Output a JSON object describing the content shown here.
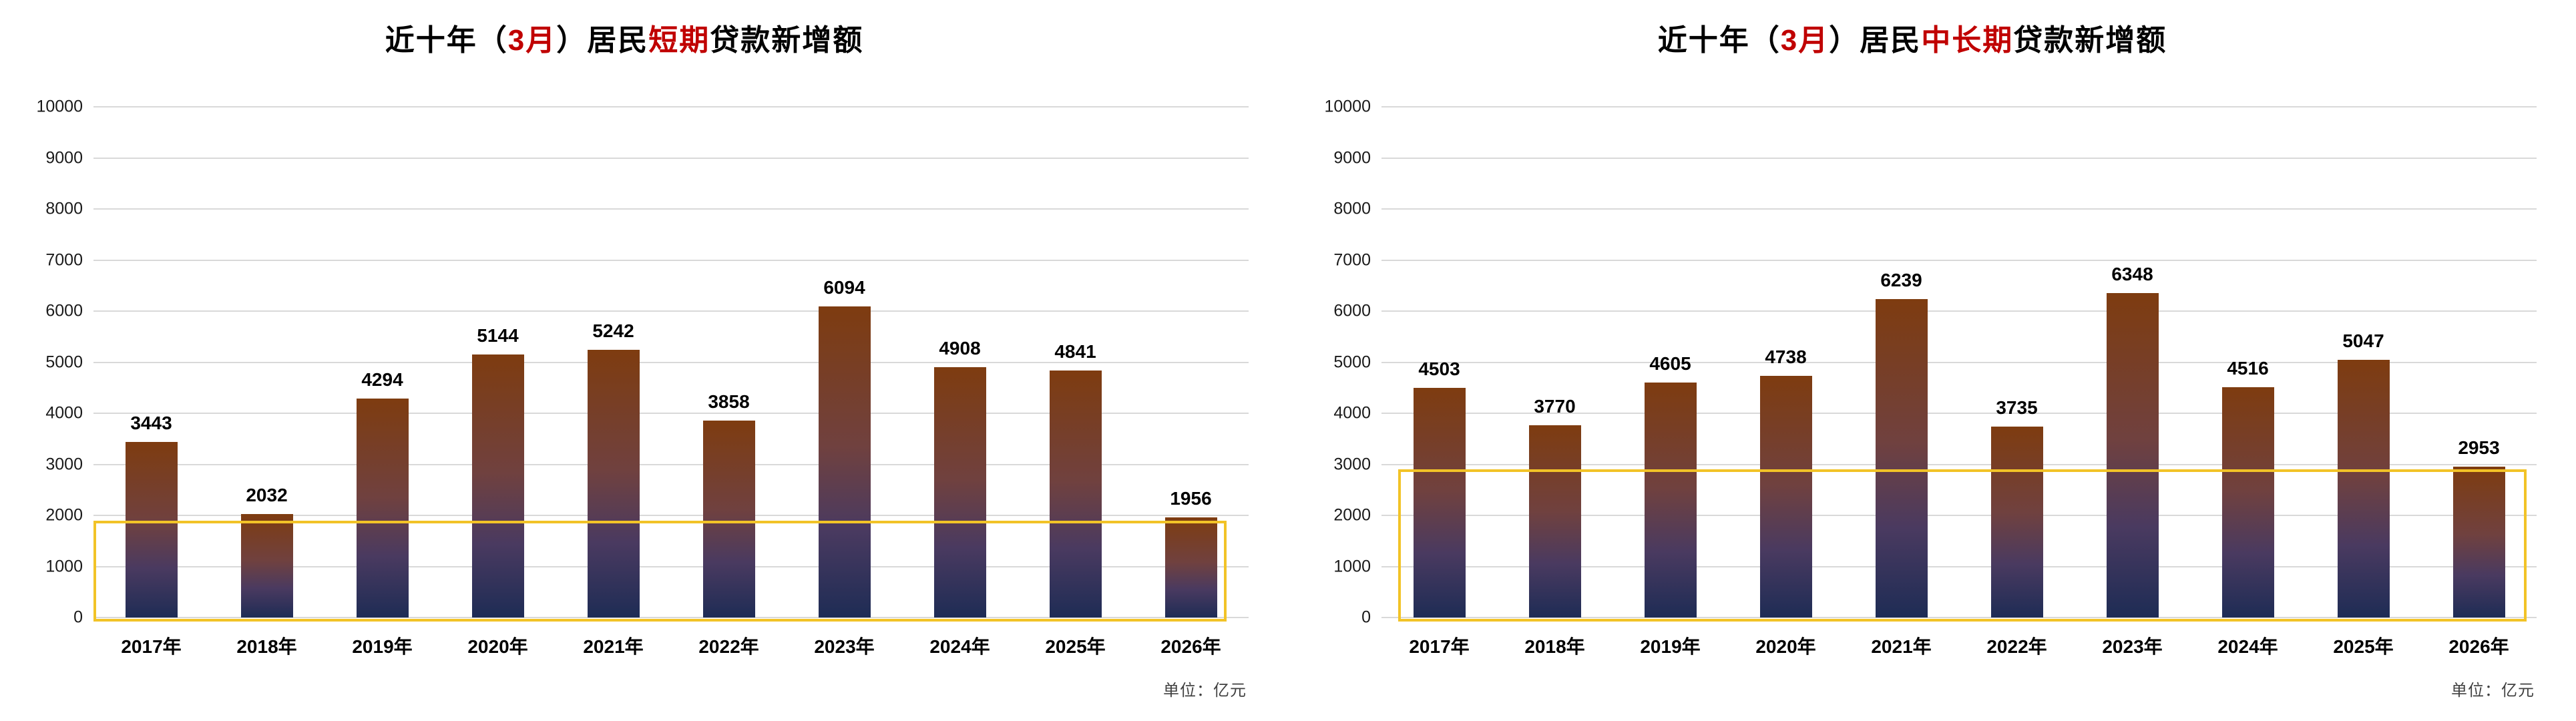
{
  "page": {
    "background_color": "#ffffff",
    "accent_red": "#c00000",
    "highlight_gold": "#f2c327",
    "gridline_color": "#d9d9d9"
  },
  "chart_data": [
    {
      "type": "bar",
      "title": "近十年（3月）居民短期贷款新增额",
      "title_segments": [
        {
          "text": "近十年（",
          "color": "#000000"
        },
        {
          "text": "3月",
          "color": "#c00000"
        },
        {
          "text": "）居民",
          "color": "#000000"
        },
        {
          "text": "短期",
          "color": "#c00000"
        },
        {
          "text": "贷款新增额",
          "color": "#000000"
        }
      ],
      "categories": [
        "2017年",
        "2018年",
        "2019年",
        "2020年",
        "2021年",
        "2022年",
        "2023年",
        "2024年",
        "2025年",
        "2026年"
      ],
      "values": [
        3443,
        2032,
        4294,
        5144,
        5242,
        3858,
        6094,
        4908,
        4841,
        1956
      ],
      "xlabel": "",
      "ylabel": "",
      "ylim": [
        0,
        10000
      ],
      "yticks": [
        0,
        1000,
        2000,
        3000,
        4000,
        5000,
        6000,
        7000,
        8000,
        9000,
        10000
      ],
      "grid": true,
      "legend": "none",
      "unit_label": "单位：亿元",
      "bar_gradient": [
        "#7e3c10",
        "#70413f",
        "#4a3a60",
        "#1e2c55"
      ],
      "highlight_box": {
        "y_top": 1900,
        "y_bottom": 0,
        "color": "#f2c327"
      }
    },
    {
      "type": "bar",
      "title": "近十年（3月）居民中长期贷款新增额",
      "title_segments": [
        {
          "text": "近十年（",
          "color": "#000000"
        },
        {
          "text": "3月",
          "color": "#c00000"
        },
        {
          "text": "）居民",
          "color": "#000000"
        },
        {
          "text": "中长期",
          "color": "#c00000"
        },
        {
          "text": "贷款新增额",
          "color": "#000000"
        }
      ],
      "categories": [
        "2017年",
        "2018年",
        "2019年",
        "2020年",
        "2021年",
        "2022年",
        "2023年",
        "2024年",
        "2025年",
        "2026年"
      ],
      "values": [
        4503,
        3770,
        4605,
        4738,
        6239,
        3735,
        6348,
        4516,
        5047,
        2953
      ],
      "xlabel": "",
      "ylabel": "",
      "ylim": [
        0,
        10000
      ],
      "yticks": [
        0,
        1000,
        2000,
        3000,
        4000,
        5000,
        6000,
        7000,
        8000,
        9000,
        10000
      ],
      "grid": true,
      "legend": "none",
      "unit_label": "单位：亿元",
      "bar_gradient": [
        "#7e3c10",
        "#70413f",
        "#4a3a60",
        "#1e2c55"
      ],
      "highlight_box": {
        "y_top": 2900,
        "y_bottom": 0,
        "color": "#f2c327"
      }
    }
  ]
}
